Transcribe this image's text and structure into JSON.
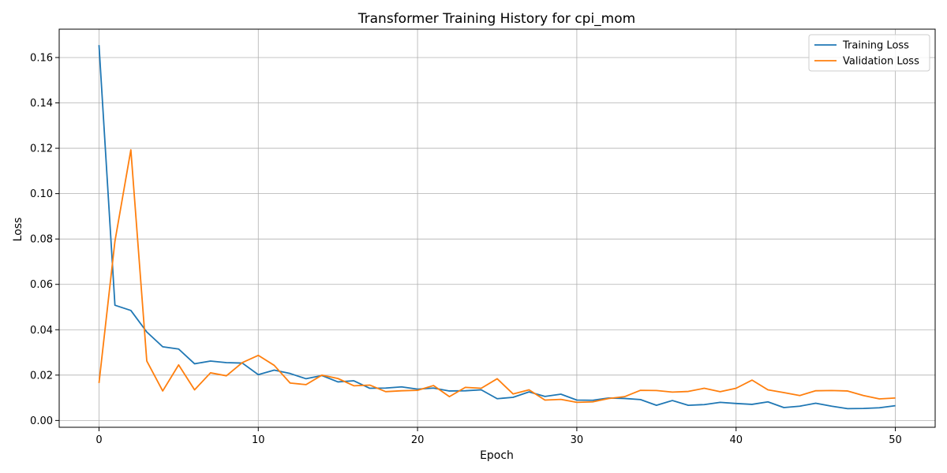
{
  "chart_data": {
    "type": "line",
    "title": "Transformer Training History for cpi_mom",
    "xlabel": "Epoch",
    "ylabel": "Loss",
    "xlim": [
      -2.5,
      52.5
    ],
    "ylim": [
      -0.003,
      0.1725
    ],
    "xticks": [
      0,
      10,
      20,
      30,
      40,
      50
    ],
    "xtick_labels": [
      "0",
      "10",
      "20",
      "30",
      "40",
      "50"
    ],
    "yticks": [
      0.0,
      0.02,
      0.04,
      0.06,
      0.08,
      0.1,
      0.12,
      0.14,
      0.16
    ],
    "ytick_labels": [
      "0.00",
      "0.02",
      "0.04",
      "0.06",
      "0.08",
      "0.10",
      "0.12",
      "0.14",
      "0.16"
    ],
    "grid": true,
    "legend_position": "top-right",
    "x": [
      0,
      1,
      2,
      3,
      4,
      5,
      6,
      7,
      8,
      9,
      10,
      11,
      12,
      13,
      14,
      15,
      16,
      17,
      18,
      19,
      20,
      21,
      22,
      23,
      24,
      25,
      26,
      27,
      28,
      29,
      30,
      31,
      32,
      33,
      34,
      35,
      36,
      37,
      38,
      39,
      40,
      41,
      42,
      43,
      44,
      45,
      46,
      47,
      48,
      49,
      50
    ],
    "series": [
      {
        "name": "Training Loss",
        "color": "#1f77b4",
        "values": [
          0.1655,
          0.0508,
          0.0485,
          0.039,
          0.0325,
          0.0315,
          0.025,
          0.0262,
          0.0255,
          0.0253,
          0.0202,
          0.0222,
          0.0207,
          0.0184,
          0.0198,
          0.017,
          0.0175,
          0.0142,
          0.0143,
          0.0148,
          0.0138,
          0.0143,
          0.013,
          0.0131,
          0.0135,
          0.0096,
          0.0102,
          0.0126,
          0.0106,
          0.0116,
          0.009,
          0.0089,
          0.0099,
          0.0097,
          0.0092,
          0.0067,
          0.0088,
          0.0067,
          0.007,
          0.008,
          0.0075,
          0.0071,
          0.0082,
          0.0057,
          0.0063,
          0.0076,
          0.0063,
          0.0052,
          0.0053,
          0.0056,
          0.0065
        ]
      },
      {
        "name": "Validation Loss",
        "color": "#ff7f0e",
        "values": [
          0.0165,
          0.079,
          0.1193,
          0.0262,
          0.013,
          0.0245,
          0.0135,
          0.021,
          0.0197,
          0.0255,
          0.0287,
          0.0243,
          0.0165,
          0.0158,
          0.02,
          0.0185,
          0.0153,
          0.0156,
          0.0127,
          0.0131,
          0.0133,
          0.0154,
          0.0105,
          0.0146,
          0.0142,
          0.0184,
          0.0117,
          0.0135,
          0.009,
          0.0093,
          0.008,
          0.0082,
          0.0097,
          0.0105,
          0.0133,
          0.0132,
          0.0125,
          0.0128,
          0.0142,
          0.0127,
          0.0142,
          0.0178,
          0.0135,
          0.0123,
          0.011,
          0.0131,
          0.0132,
          0.013,
          0.011,
          0.0095,
          0.0099
        ]
      }
    ]
  }
}
